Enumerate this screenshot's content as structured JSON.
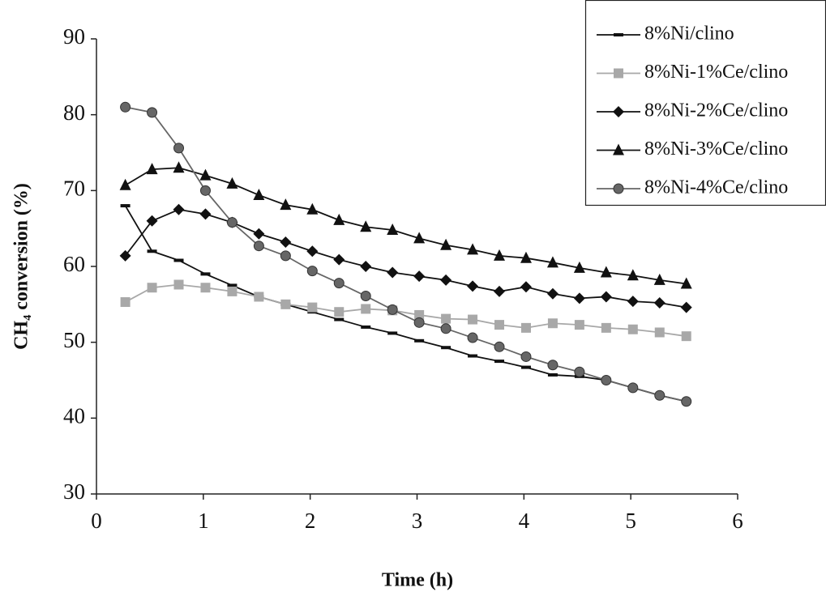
{
  "chart_data": {
    "type": "line",
    "x_label": "Time (h)",
    "y_label": "CH₄ conversion (%)",
    "xlim": [
      0,
      6
    ],
    "xticks": [
      0,
      1,
      2,
      3,
      4,
      5,
      6
    ],
    "ylim": [
      30,
      90
    ],
    "yticks": [
      30,
      40,
      50,
      60,
      70,
      80,
      90
    ],
    "grid": false,
    "legend_position": "upper right",
    "x": [
      0.27,
      0.52,
      0.77,
      1.02,
      1.27,
      1.52,
      1.77,
      2.02,
      2.27,
      2.52,
      2.77,
      3.02,
      3.27,
      3.52,
      3.77,
      4.02,
      4.27,
      4.52,
      4.77,
      5.02,
      5.27,
      5.52
    ],
    "series": [
      {
        "name": "8%Ni/clino",
        "color": "#111111",
        "marker": "dash",
        "values": [
          68,
          62,
          60.8,
          59,
          57.5,
          56,
          55,
          54,
          53,
          52,
          51.2,
          50.2,
          49.3,
          48.2,
          47.5,
          46.7,
          45.7,
          45.5,
          45,
          44,
          43,
          42.2
        ]
      },
      {
        "name": "8%Ni-1%Ce/clino",
        "color": "#a8a8a8",
        "marker": "square",
        "values": [
          55.3,
          57.2,
          57.6,
          57.2,
          56.7,
          56,
          55,
          54.6,
          54,
          54.4,
          54.2,
          53.6,
          53.1,
          53,
          52.3,
          51.9,
          52.5,
          52.3,
          51.9,
          51.7,
          51.3,
          50.8
        ]
      },
      {
        "name": "8%Ni-2%Ce/clino",
        "color": "#111111",
        "marker": "diamond",
        "values": [
          61.4,
          66,
          67.5,
          66.9,
          65.8,
          64.3,
          63.2,
          62,
          60.9,
          60,
          59.2,
          58.7,
          58.2,
          57.4,
          56.7,
          57.3,
          56.4,
          55.8,
          56,
          55.4,
          55.2,
          54.6
        ]
      },
      {
        "name": "8%Ni-3%Ce/clino",
        "color": "#111111",
        "marker": "triangle",
        "values": [
          70.7,
          72.8,
          73,
          72,
          70.9,
          69.4,
          68.1,
          67.5,
          66.1,
          65.2,
          64.8,
          63.7,
          62.8,
          62.2,
          61.4,
          61.1,
          60.5,
          59.8,
          59.2,
          58.8,
          58.2,
          57.7
        ]
      },
      {
        "name": "8%Ni-4%Ce/clino",
        "color": "#666666",
        "marker": "circle",
        "values": [
          81,
          80.3,
          75.6,
          70,
          65.8,
          62.7,
          61.4,
          59.4,
          57.8,
          56.1,
          54.3,
          52.6,
          51.8,
          50.6,
          49.4,
          48.1,
          47,
          46.1,
          45,
          44,
          43,
          42.2
        ]
      }
    ]
  }
}
